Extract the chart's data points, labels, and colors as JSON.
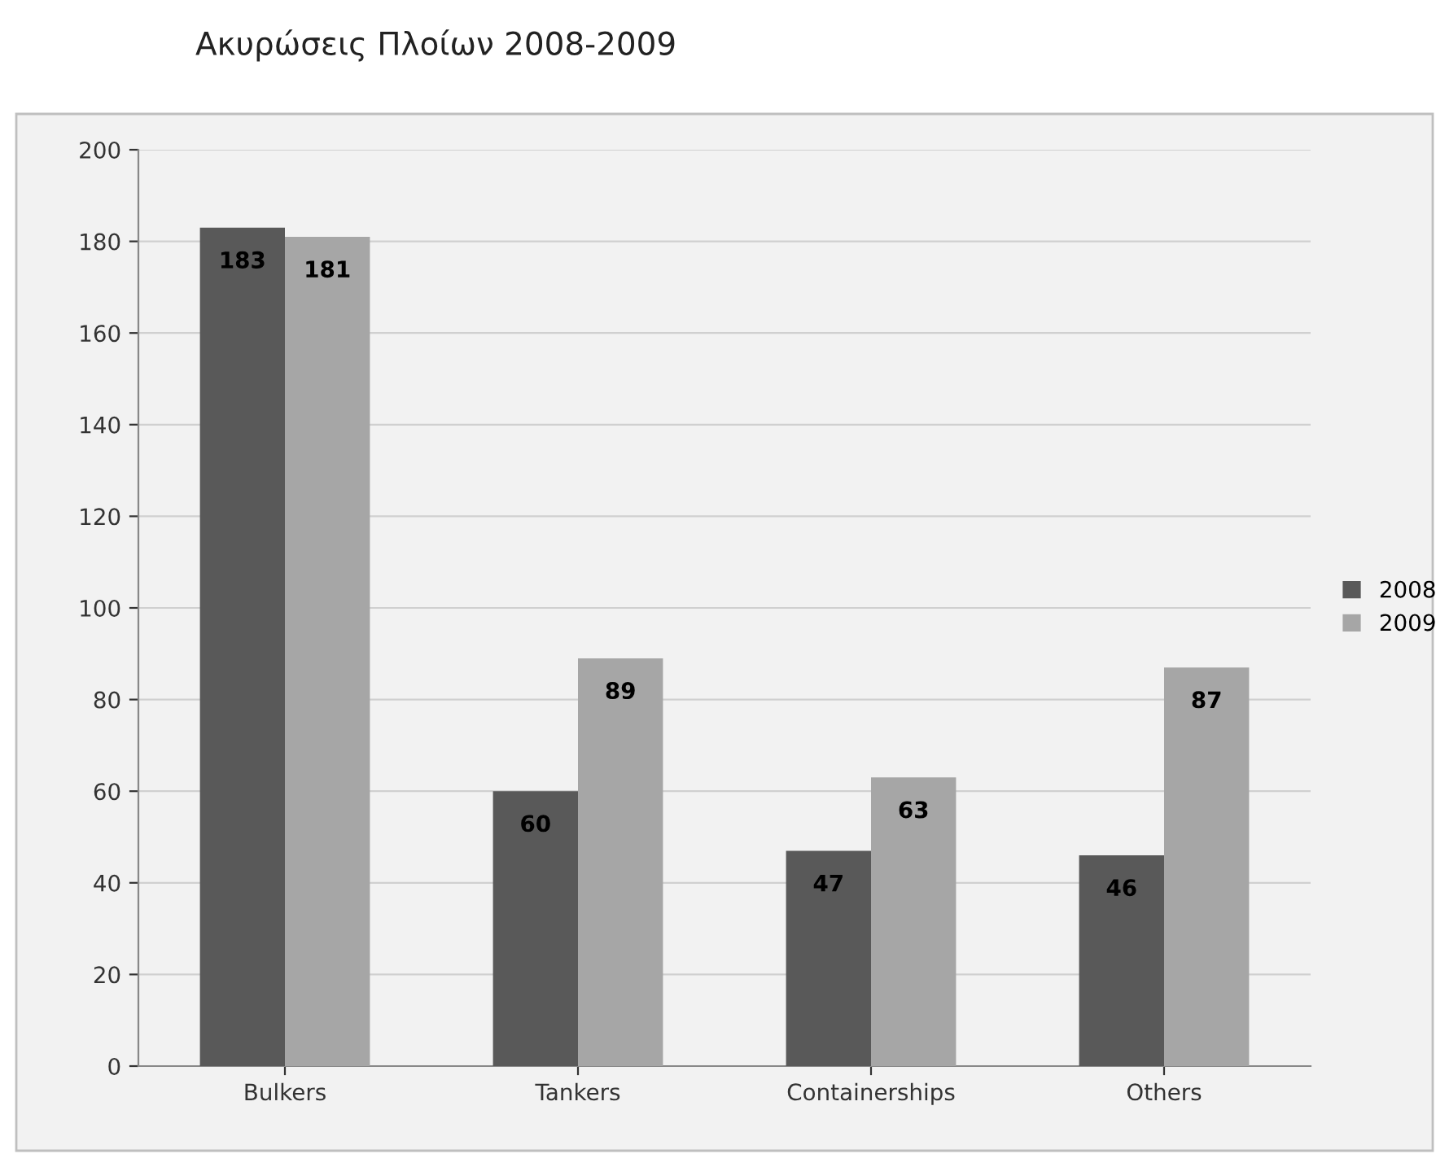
{
  "chart_data": {
    "type": "bar",
    "title": "Ακυρώσεις Πλοίων 2008-2009",
    "categories": [
      "Bulkers",
      "Tankers",
      "Containerships",
      "Others"
    ],
    "series": [
      {
        "name": "2008",
        "color": "#595959",
        "values": [
          183,
          60,
          47,
          46
        ]
      },
      {
        "name": "2009",
        "color": "#a6a6a6",
        "values": [
          181,
          89,
          63,
          87
        ]
      }
    ],
    "ylim": [
      0,
      200
    ],
    "yticks": [
      0,
      20,
      40,
      60,
      80,
      100,
      120,
      140,
      160,
      180,
      200
    ],
    "grid": "y",
    "legend": "right",
    "data_labels": true
  }
}
